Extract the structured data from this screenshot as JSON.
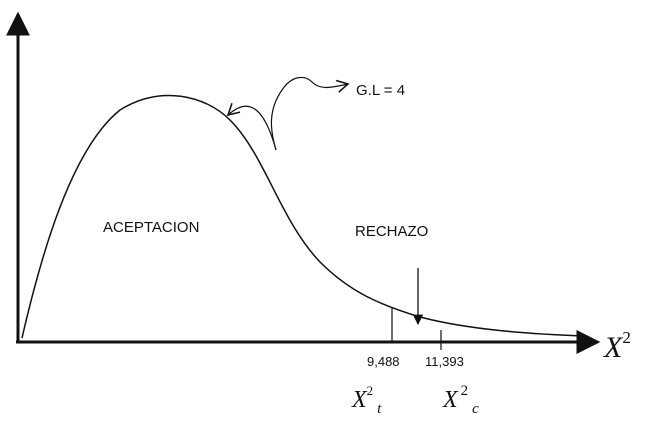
{
  "annotation": "G.L = 4",
  "regions": {
    "accept": "ACEPTACION",
    "reject": "RECHAZO"
  },
  "axis_label": {
    "symbol": "X",
    "sup": "2"
  },
  "critical_values": [
    {
      "value_label": "9,488",
      "symbol": "X",
      "sup": "2",
      "sub": "t"
    },
    {
      "value_label": "11,393",
      "symbol": "X",
      "sup": "2",
      "sub": "c"
    }
  ]
}
